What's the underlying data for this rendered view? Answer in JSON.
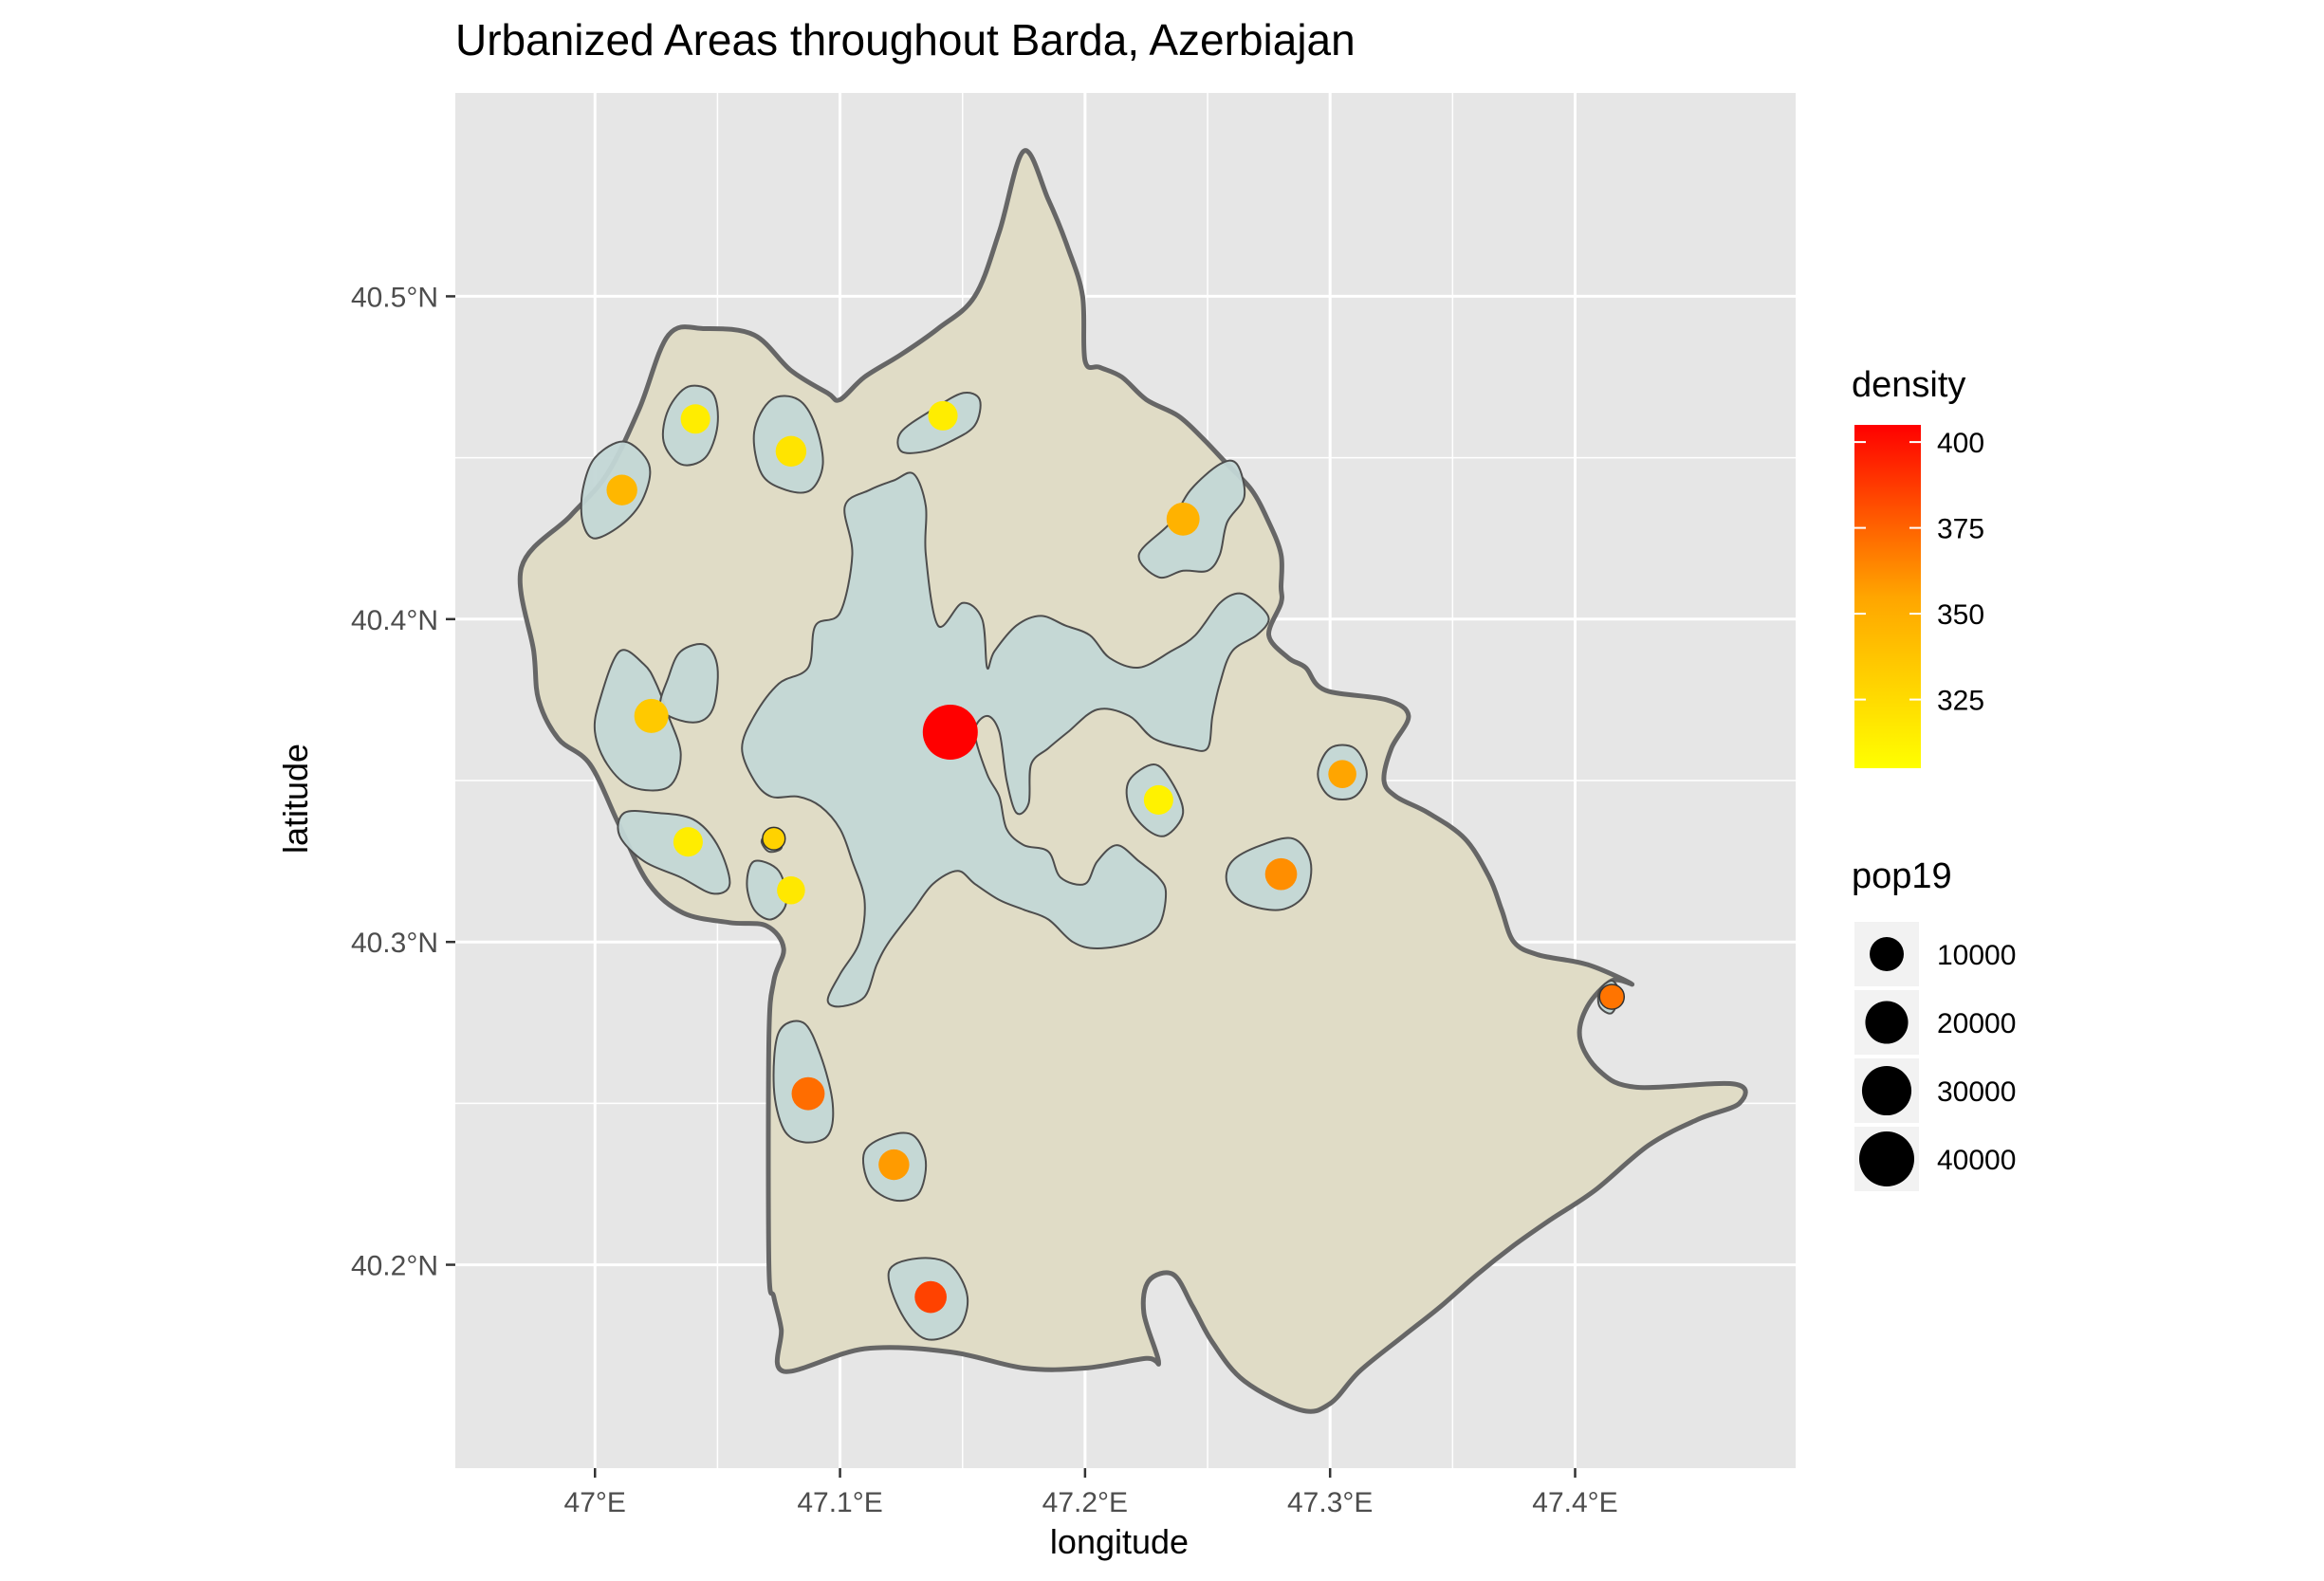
{
  "title": "Urbanized Areas throughout Barda, Azerbiajan",
  "xlabel": "longitude",
  "ylabel": "latitude",
  "x_ticks": [
    {
      "value": 47.0,
      "label": "47°E"
    },
    {
      "value": 47.1,
      "label": "47.1°E"
    },
    {
      "value": 47.2,
      "label": "47.2°E"
    },
    {
      "value": 47.3,
      "label": "47.3°E"
    },
    {
      "value": 47.4,
      "label": "47.4°E"
    }
  ],
  "y_ticks": [
    {
      "value": 40.2,
      "label": "40.2°N"
    },
    {
      "value": 40.3,
      "label": "40.3°N"
    },
    {
      "value": 40.4,
      "label": "40.4°N"
    },
    {
      "value": 40.5,
      "label": "40.5°N"
    }
  ],
  "xlim": [
    46.943,
    47.49
  ],
  "ylim": [
    40.137,
    40.563
  ],
  "colors": {
    "panel_bg": "#e6e6e6",
    "grid": "#ffffff",
    "district_fill": "#e0dcc6",
    "district_stroke": "#666666",
    "urban_fill": "#c3d7d6",
    "urban_stroke": "#4d4d4d",
    "density_low": "#ffff00",
    "density_mid": "#ffa500",
    "density_high": "#ff0000"
  },
  "district_boundary": [
    [
      46.97,
      40.416
    ],
    [
      46.975,
      40.39
    ],
    [
      46.977,
      40.375
    ],
    [
      46.985,
      40.363
    ],
    [
      46.998,
      40.355
    ],
    [
      47.01,
      40.336
    ],
    [
      47.022,
      40.318
    ],
    [
      47.036,
      40.309
    ],
    [
      47.055,
      40.306
    ],
    [
      47.07,
      40.305
    ],
    [
      47.077,
      40.298
    ],
    [
      47.073,
      40.288
    ],
    [
      47.071,
      40.27
    ],
    [
      47.071,
      40.2
    ],
    [
      47.073,
      40.19
    ],
    [
      47.076,
      40.18
    ],
    [
      47.077,
      40.167
    ],
    [
      47.11,
      40.174
    ],
    [
      47.145,
      40.173
    ],
    [
      47.175,
      40.168
    ],
    [
      47.2,
      40.168
    ],
    [
      47.225,
      40.171
    ],
    [
      47.23,
      40.17
    ],
    [
      47.224,
      40.185
    ],
    [
      47.226,
      40.195
    ],
    [
      47.236,
      40.197
    ],
    [
      47.244,
      40.187
    ],
    [
      47.252,
      40.176
    ],
    [
      47.265,
      40.164
    ],
    [
      47.288,
      40.155
    ],
    [
      47.3,
      40.157
    ],
    [
      47.312,
      40.167
    ],
    [
      47.33,
      40.178
    ],
    [
      47.345,
      40.187
    ],
    [
      47.36,
      40.197
    ],
    [
      47.375,
      40.206
    ],
    [
      47.39,
      40.214
    ],
    [
      47.408,
      40.223
    ],
    [
      47.43,
      40.237
    ],
    [
      47.45,
      40.245
    ],
    [
      47.467,
      40.25
    ],
    [
      47.465,
      40.256
    ],
    [
      47.425,
      40.255
    ],
    [
      47.41,
      40.26
    ],
    [
      47.402,
      40.27
    ],
    [
      47.405,
      40.28
    ],
    [
      47.415,
      40.288
    ],
    [
      47.423,
      40.287
    ],
    [
      47.405,
      40.293
    ],
    [
      47.385,
      40.296
    ],
    [
      47.375,
      40.3
    ],
    [
      47.37,
      40.31
    ],
    [
      47.365,
      40.32
    ],
    [
      47.355,
      40.332
    ],
    [
      47.34,
      40.34
    ],
    [
      47.327,
      40.345
    ],
    [
      47.322,
      40.35
    ],
    [
      47.325,
      40.36
    ],
    [
      47.332,
      40.37
    ],
    [
      47.323,
      40.375
    ],
    [
      47.298,
      40.378
    ],
    [
      47.29,
      40.385
    ],
    [
      47.283,
      40.388
    ],
    [
      47.275,
      40.395
    ],
    [
      47.28,
      40.405
    ],
    [
      47.28,
      40.41
    ],
    [
      47.28,
      40.42
    ],
    [
      47.275,
      40.43
    ],
    [
      47.268,
      40.44
    ],
    [
      47.258,
      40.448
    ],
    [
      47.248,
      40.456
    ],
    [
      47.238,
      40.463
    ],
    [
      47.225,
      40.468
    ],
    [
      47.215,
      40.475
    ],
    [
      47.206,
      40.478
    ],
    [
      47.2,
      40.48
    ],
    [
      47.199,
      40.5
    ],
    [
      47.193,
      40.515
    ],
    [
      47.185,
      40.53
    ],
    [
      47.175,
      40.545
    ],
    [
      47.165,
      40.52
    ],
    [
      47.155,
      40.5
    ],
    [
      47.14,
      40.49
    ],
    [
      47.125,
      40.482
    ],
    [
      47.11,
      40.475
    ],
    [
      47.1,
      40.468
    ],
    [
      47.095,
      40.47
    ],
    [
      47.08,
      40.477
    ],
    [
      47.065,
      40.488
    ],
    [
      47.045,
      40.49
    ],
    [
      47.03,
      40.488
    ],
    [
      47.018,
      40.465
    ],
    [
      47.005,
      40.445
    ],
    [
      46.99,
      40.432
    ]
  ],
  "urban_areas": [
    {
      "outline": [
        [
          47.075,
          40.38
        ],
        [
          47.087,
          40.385
        ],
        [
          47.09,
          40.398
        ],
        [
          47.1,
          40.402
        ],
        [
          47.105,
          40.42
        ],
        [
          47.102,
          40.435
        ],
        [
          47.112,
          40.44
        ],
        [
          47.122,
          40.443
        ],
        [
          47.13,
          40.445
        ],
        [
          47.135,
          40.435
        ],
        [
          47.135,
          40.42
        ],
        [
          47.14,
          40.398
        ],
        [
          47.15,
          40.405
        ],
        [
          47.158,
          40.4
        ],
        [
          47.16,
          40.385
        ],
        [
          47.163,
          40.39
        ],
        [
          47.172,
          40.398
        ],
        [
          47.182,
          40.401
        ],
        [
          47.192,
          40.398
        ],
        [
          47.202,
          40.395
        ],
        [
          47.21,
          40.388
        ],
        [
          47.222,
          40.385
        ],
        [
          47.235,
          40.39
        ],
        [
          47.245,
          40.395
        ],
        [
          47.255,
          40.405
        ],
        [
          47.263,
          40.408
        ],
        [
          47.27,
          40.405
        ],
        [
          47.275,
          40.4
        ],
        [
          47.27,
          40.395
        ],
        [
          47.26,
          40.39
        ],
        [
          47.255,
          40.38
        ],
        [
          47.252,
          40.37
        ],
        [
          47.25,
          40.36
        ],
        [
          47.242,
          40.36
        ],
        [
          47.228,
          40.363
        ],
        [
          47.218,
          40.37
        ],
        [
          47.205,
          40.372
        ],
        [
          47.193,
          40.365
        ],
        [
          47.185,
          40.36
        ],
        [
          47.178,
          40.355
        ],
        [
          47.177,
          40.343
        ],
        [
          47.172,
          40.34
        ],
        [
          47.168,
          40.35
        ],
        [
          47.165,
          40.365
        ],
        [
          47.16,
          40.37
        ],
        [
          47.155,
          40.365
        ],
        [
          47.16,
          40.352
        ],
        [
          47.165,
          40.345
        ],
        [
          47.168,
          40.335
        ],
        [
          47.175,
          40.33
        ],
        [
          47.185,
          40.328
        ],
        [
          47.19,
          40.32
        ],
        [
          47.2,
          40.318
        ],
        [
          47.205,
          40.325
        ],
        [
          47.213,
          40.33
        ],
        [
          47.222,
          40.325
        ],
        [
          47.23,
          40.32
        ],
        [
          47.233,
          40.315
        ],
        [
          47.23,
          40.305
        ],
        [
          47.22,
          40.3
        ],
        [
          47.205,
          40.298
        ],
        [
          47.195,
          40.3
        ],
        [
          47.185,
          40.307
        ],
        [
          47.175,
          40.31
        ],
        [
          47.165,
          40.313
        ],
        [
          47.155,
          40.318
        ],
        [
          47.148,
          40.322
        ],
        [
          47.138,
          40.318
        ],
        [
          47.13,
          40.31
        ],
        [
          47.12,
          40.3
        ],
        [
          47.115,
          40.293
        ],
        [
          47.11,
          40.283
        ],
        [
          47.1,
          40.28
        ],
        [
          47.095,
          40.282
        ],
        [
          47.1,
          40.29
        ],
        [
          47.108,
          40.3
        ],
        [
          47.11,
          40.313
        ],
        [
          47.105,
          40.325
        ],
        [
          47.1,
          40.335
        ],
        [
          47.092,
          40.342
        ],
        [
          47.083,
          40.345
        ],
        [
          47.072,
          40.345
        ],
        [
          47.065,
          40.35
        ],
        [
          47.06,
          40.36
        ],
        [
          47.065,
          40.37
        ]
      ]
    },
    {
      "outline": [
        [
          47.01,
          40.39
        ],
        [
          47.02,
          40.386
        ],
        [
          47.025,
          40.38
        ],
        [
          47.03,
          40.37
        ],
        [
          47.035,
          40.358
        ],
        [
          47.03,
          40.348
        ],
        [
          47.015,
          40.348
        ],
        [
          47.005,
          40.355
        ],
        [
          47.0,
          40.365
        ],
        [
          47.002,
          40.375
        ]
      ]
    },
    {
      "outline": [
        [
          47.027,
          40.372
        ],
        [
          47.04,
          40.368
        ],
        [
          47.048,
          40.372
        ],
        [
          47.05,
          40.385
        ],
        [
          47.045,
          40.392
        ],
        [
          47.035,
          40.39
        ],
        [
          47.03,
          40.382
        ]
      ]
    },
    {
      "outline": [
        [
          47.012,
          40.34
        ],
        [
          47.025,
          40.34
        ],
        [
          47.04,
          40.338
        ],
        [
          47.05,
          40.33
        ],
        [
          47.055,
          40.318
        ],
        [
          47.048,
          40.315
        ],
        [
          47.035,
          40.32
        ],
        [
          47.02,
          40.325
        ],
        [
          47.01,
          40.333
        ]
      ]
    },
    {
      "outline": [
        [
          47.065,
          40.325
        ],
        [
          47.075,
          40.322
        ],
        [
          47.078,
          40.312
        ],
        [
          47.072,
          40.307
        ],
        [
          47.065,
          40.31
        ],
        [
          47.062,
          40.318
        ]
      ]
    },
    {
      "outline": [
        [
          47.07,
          40.333
        ],
        [
          47.075,
          40.333
        ],
        [
          47.076,
          40.329
        ],
        [
          47.071,
          40.328
        ],
        [
          47.068,
          40.331
        ]
      ]
    },
    {
      "outline": [
        [
          47.0,
          40.425
        ],
        [
          47.012,
          40.43
        ],
        [
          47.02,
          40.438
        ],
        [
          47.022,
          40.448
        ],
        [
          47.012,
          40.455
        ],
        [
          47.0,
          40.45
        ],
        [
          46.995,
          40.44
        ],
        [
          46.995,
          40.43
        ]
      ]
    },
    {
      "outline": [
        [
          47.03,
          40.465
        ],
        [
          47.038,
          40.472
        ],
        [
          47.048,
          40.47
        ],
        [
          47.05,
          40.46
        ],
        [
          47.045,
          40.45
        ],
        [
          47.035,
          40.448
        ],
        [
          47.028,
          40.455
        ]
      ]
    },
    {
      "outline": [
        [
          47.065,
          40.458
        ],
        [
          47.072,
          40.468
        ],
        [
          47.083,
          40.468
        ],
        [
          47.09,
          40.46
        ],
        [
          47.093,
          40.448
        ],
        [
          47.088,
          40.44
        ],
        [
          47.078,
          40.44
        ],
        [
          47.068,
          40.445
        ]
      ]
    },
    {
      "outline": [
        [
          47.125,
          40.458
        ],
        [
          47.138,
          40.465
        ],
        [
          47.15,
          40.47
        ],
        [
          47.157,
          40.468
        ],
        [
          47.155,
          40.46
        ],
        [
          47.145,
          40.455
        ],
        [
          47.135,
          40.452
        ],
        [
          47.125,
          40.452
        ]
      ]
    },
    {
      "outline": [
        [
          47.222,
          40.42
        ],
        [
          47.235,
          40.43
        ],
        [
          47.243,
          40.44
        ],
        [
          47.255,
          40.448
        ],
        [
          47.262,
          40.448
        ],
        [
          47.265,
          40.438
        ],
        [
          47.258,
          40.43
        ],
        [
          47.255,
          40.42
        ],
        [
          47.25,
          40.415
        ],
        [
          47.24,
          40.415
        ],
        [
          47.23,
          40.413
        ]
      ]
    },
    {
      "outline": [
        [
          47.218,
          40.35
        ],
        [
          47.228,
          40.355
        ],
        [
          47.235,
          40.35
        ],
        [
          47.24,
          40.34
        ],
        [
          47.233,
          40.333
        ],
        [
          47.225,
          40.335
        ],
        [
          47.218,
          40.342
        ]
      ]
    },
    {
      "outline": [
        [
          47.295,
          40.352
        ],
        [
          47.3,
          40.36
        ],
        [
          47.31,
          40.36
        ],
        [
          47.315,
          40.352
        ],
        [
          47.31,
          40.345
        ],
        [
          47.3,
          40.345
        ]
      ]
    },
    {
      "outline": [
        [
          47.26,
          40.325
        ],
        [
          47.272,
          40.33
        ],
        [
          47.285,
          40.332
        ],
        [
          47.292,
          40.325
        ],
        [
          47.29,
          40.315
        ],
        [
          47.28,
          40.31
        ],
        [
          47.265,
          40.312
        ],
        [
          47.258,
          40.318
        ]
      ]
    },
    {
      "outline": [
        [
          47.41,
          40.285
        ],
        [
          47.415,
          40.288
        ],
        [
          47.418,
          40.284
        ],
        [
          47.415,
          40.278
        ],
        [
          47.41,
          40.28
        ]
      ]
    },
    {
      "outline": [
        [
          47.075,
          40.272
        ],
        [
          47.085,
          40.275
        ],
        [
          47.092,
          40.265
        ],
        [
          47.097,
          40.25
        ],
        [
          47.095,
          40.24
        ],
        [
          47.085,
          40.238
        ],
        [
          47.077,
          40.242
        ],
        [
          47.073,
          40.255
        ]
      ]
    },
    {
      "outline": [
        [
          47.11,
          40.235
        ],
        [
          47.12,
          40.24
        ],
        [
          47.13,
          40.24
        ],
        [
          47.135,
          40.232
        ],
        [
          47.132,
          40.222
        ],
        [
          47.122,
          40.22
        ],
        [
          47.112,
          40.225
        ]
      ]
    },
    {
      "outline": [
        [
          47.12,
          40.198
        ],
        [
          47.132,
          40.202
        ],
        [
          47.145,
          40.2
        ],
        [
          47.152,
          40.19
        ],
        [
          47.148,
          40.18
        ],
        [
          47.135,
          40.177
        ],
        [
          47.125,
          40.185
        ]
      ]
    }
  ],
  "settlements": [
    {
      "lon": 47.145,
      "lat": 40.365,
      "pop": 40000,
      "density": 405
    },
    {
      "lon": 47.011,
      "lat": 40.44,
      "pop": 7000,
      "density": 345
    },
    {
      "lon": 47.041,
      "lat": 40.462,
      "pop": 6000,
      "density": 315
    },
    {
      "lon": 47.08,
      "lat": 40.452,
      "pop": 7000,
      "density": 320
    },
    {
      "lon": 47.142,
      "lat": 40.463,
      "pop": 6000,
      "density": 315
    },
    {
      "lon": 47.24,
      "lat": 40.431,
      "pop": 9000,
      "density": 348
    },
    {
      "lon": 47.023,
      "lat": 40.37,
      "pop": 10000,
      "density": 335
    },
    {
      "lon": 47.038,
      "lat": 40.331,
      "pop": 6000,
      "density": 315
    },
    {
      "lon": 47.073,
      "lat": 40.332,
      "pop": 2000,
      "density": 330
    },
    {
      "lon": 47.08,
      "lat": 40.316,
      "pop": 5000,
      "density": 318
    },
    {
      "lon": 47.23,
      "lat": 40.344,
      "pop": 6000,
      "density": 312
    },
    {
      "lon": 47.305,
      "lat": 40.352,
      "pop": 5000,
      "density": 355
    },
    {
      "lon": 47.28,
      "lat": 40.321,
      "pop": 8000,
      "density": 362
    },
    {
      "lon": 47.415,
      "lat": 40.283,
      "pop": 3000,
      "density": 370
    },
    {
      "lon": 47.087,
      "lat": 40.253,
      "pop": 9000,
      "density": 372
    },
    {
      "lon": 47.122,
      "lat": 40.231,
      "pop": 7000,
      "density": 358
    },
    {
      "lon": 47.137,
      "lat": 40.19,
      "pop": 8000,
      "density": 385
    }
  ],
  "legend": {
    "density": {
      "title": "density",
      "ticks": [
        {
          "value": 400,
          "label": "400"
        },
        {
          "value": 375,
          "label": "375"
        },
        {
          "value": 350,
          "label": "350"
        },
        {
          "value": 325,
          "label": "325"
        }
      ],
      "range": [
        305,
        405
      ]
    },
    "pop19": {
      "title": "pop19",
      "entries": [
        {
          "value": 10000,
          "label": "10000"
        },
        {
          "value": 20000,
          "label": "20000"
        },
        {
          "value": 30000,
          "label": "30000"
        },
        {
          "value": 40000,
          "label": "40000"
        }
      ]
    }
  }
}
